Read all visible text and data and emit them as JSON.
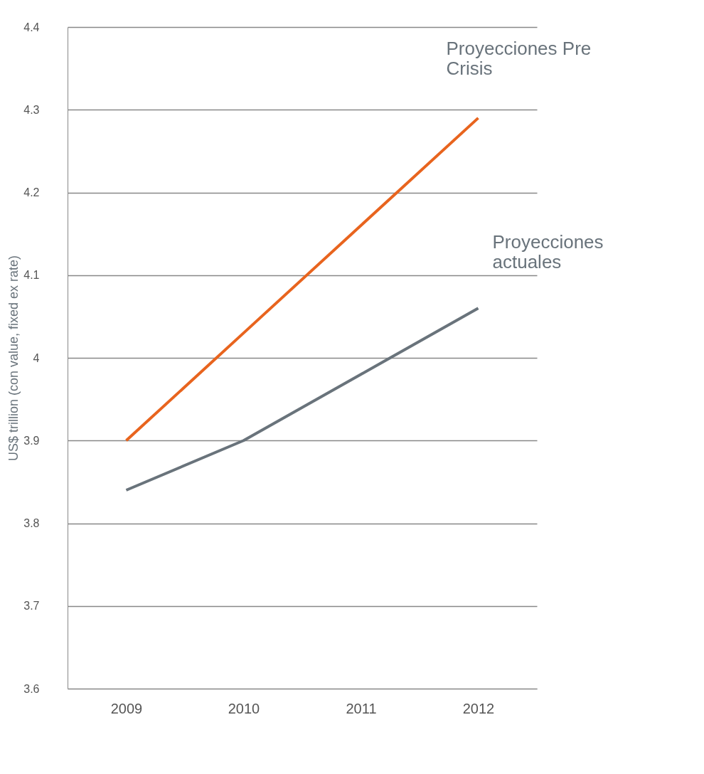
{
  "chart_data": {
    "type": "line",
    "ylabel": "US$ trillion (con value, fixed ex rate)",
    "categories": [
      "2009",
      "2010",
      "2011",
      "2012"
    ],
    "series": [
      {
        "name": "Proyecciones Pre Crisis",
        "color": "#e8641e",
        "values": [
          3.9,
          4.03,
          4.16,
          4.29
        ]
      },
      {
        "name": "Proyecciones actuales",
        "color": "#69737b",
        "values": [
          3.84,
          3.9,
          3.98,
          4.06
        ]
      }
    ],
    "ylim": [
      3.6,
      4.4
    ],
    "yticks": [
      3.6,
      3.7,
      3.8,
      3.9,
      4,
      4.1,
      4.2,
      4.3,
      4.4
    ],
    "grid": "y",
    "marker": "none",
    "line_style": "solid"
  }
}
